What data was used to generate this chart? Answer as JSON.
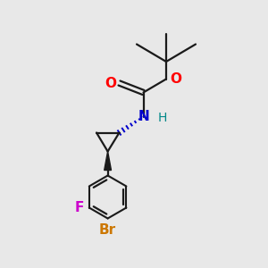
{
  "bg_color": "#e8e8e8",
  "bond_color": "#1a1a1a",
  "atom_colors": {
    "O": "#ff0000",
    "N": "#0000cc",
    "Br": "#cc7700",
    "F": "#cc00cc",
    "H_on_N": "#008888",
    "C": "#1a1a1a"
  },
  "font_size": 11,
  "font_size_h": 10,
  "lw": 1.6
}
